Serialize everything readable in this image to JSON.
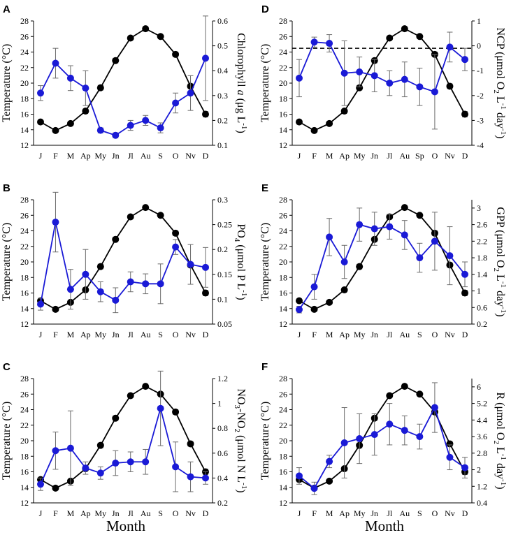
{
  "months_label": "Month",
  "colors": {
    "temperature": "#000000",
    "variable": "#1a1ad6",
    "error": "#6b6b6b",
    "ref": "#000000"
  },
  "chart_data": [
    {
      "panel": "A",
      "type": "line",
      "categories": [
        "J",
        "F",
        "M",
        "Ap",
        "My",
        "Jn",
        "Jl",
        "Au",
        "S",
        "O",
        "Nv",
        "D"
      ],
      "xlabel": "",
      "left_axis": {
        "label": "Temperature (°C)",
        "ylim": [
          12,
          28
        ],
        "ticks": [
          "12",
          "14",
          "16",
          "18",
          "20",
          "22",
          "24",
          "26",
          "28"
        ]
      },
      "right_axis": {
        "label_parts": [
          "Chlorophyll ",
          "a",
          " (",
          "μ",
          "g L",
          "-1",
          ")"
        ],
        "ylim": [
          0.1,
          0.6
        ],
        "ticks": [
          "0.1",
          "0.2",
          "0.3",
          "0.4",
          "0.5",
          "0.6"
        ]
      },
      "series": [
        {
          "name": "Temperature",
          "axis": "left",
          "values": [
            15.0,
            13.9,
            14.8,
            16.4,
            19.4,
            22.9,
            25.8,
            27.0,
            26.0,
            23.7,
            19.6,
            16.0
          ],
          "errors": [
            0.15,
            0.15,
            0.15,
            0.25,
            0.3,
            0.3,
            0.2,
            0.15,
            0.2,
            0.3,
            0.3,
            0.35
          ]
        },
        {
          "name": "Chlorophyll a",
          "axis": "right",
          "values": [
            0.31,
            0.43,
            0.37,
            0.33,
            0.16,
            0.14,
            0.18,
            0.2,
            0.17,
            0.27,
            0.31,
            0.45
          ],
          "errors": [
            0.03,
            0.06,
            0.05,
            0.07,
            0.01,
            0.01,
            0.02,
            0.02,
            0.02,
            0.04,
            0.07,
            0.17
          ]
        }
      ]
    },
    {
      "panel": "D",
      "type": "line",
      "categories": [
        "J",
        "F",
        "M",
        "Ap",
        "My",
        "Jn",
        "Jl",
        "Au",
        "Sp",
        "O",
        "Nv",
        "D"
      ],
      "xlabel": "",
      "left_axis": {
        "label": "Temperature (°C)",
        "ylim": [
          12,
          28
        ],
        "ticks": [
          "12",
          "14",
          "16",
          "18",
          "20",
          "22",
          "24",
          "26",
          "28"
        ]
      },
      "right_axis": {
        "label_parts": [
          "NCP (",
          "μ",
          "mol O",
          "2",
          " L",
          "-1",
          " day",
          "-1",
          ")"
        ],
        "ylim": [
          -4,
          1
        ],
        "ticks": [
          "-4",
          "-3",
          "-2",
          "-1",
          "0",
          "1"
        ]
      },
      "reference_line": {
        "axis": "right",
        "value": -0.1,
        "style": "dashed"
      },
      "series": [
        {
          "name": "Temperature",
          "axis": "left",
          "values": [
            15.0,
            13.9,
            14.8,
            16.4,
            19.4,
            22.9,
            25.8,
            27.0,
            26.0,
            23.7,
            19.6,
            16.0
          ],
          "errors": [
            0.15,
            0.15,
            0.15,
            0.25,
            0.3,
            0.3,
            0.2,
            0.15,
            0.2,
            0.3,
            0.3,
            0.35
          ]
        },
        {
          "name": "NCP",
          "axis": "right",
          "values": [
            -1.3,
            0.15,
            0.1,
            -1.1,
            -1.05,
            -1.2,
            -1.5,
            -1.35,
            -1.65,
            -1.85,
            -0.05,
            -0.55
          ],
          "errors": [
            0.75,
            0.2,
            0.35,
            1.3,
            0.6,
            0.65,
            0.5,
            0.7,
            0.75,
            1.5,
            0.6,
            0.45
          ]
        }
      ]
    },
    {
      "panel": "B",
      "type": "line",
      "categories": [
        "J",
        "F",
        "M",
        "Ap",
        "My",
        "Jn",
        "Jl",
        "Au",
        "S",
        "O",
        "Nv",
        "D"
      ],
      "xlabel": "",
      "left_axis": {
        "label": "Temperature (°C)",
        "ylim": [
          12,
          28
        ],
        "ticks": [
          "12",
          "14",
          "16",
          "18",
          "20",
          "22",
          "24",
          "26",
          "28"
        ]
      },
      "right_axis": {
        "label_parts": [
          "PO",
          "4",
          " (",
          "μ",
          "mol P L",
          "-1",
          ")"
        ],
        "ylim": [
          0.05,
          0.3
        ],
        "ticks": [
          "0.05",
          "0.1",
          "0.15",
          "0.2",
          "0.25",
          "0.3"
        ]
      },
      "series": [
        {
          "name": "Temperature",
          "axis": "left",
          "values": [
            15.0,
            13.9,
            14.8,
            16.4,
            19.4,
            22.9,
            25.8,
            27.0,
            26.0,
            23.7,
            19.6,
            16.0
          ],
          "errors": [
            0.15,
            0.15,
            0.15,
            0.25,
            0.3,
            0.3,
            0.2,
            0.15,
            0.2,
            0.3,
            0.3,
            0.35
          ]
        },
        {
          "name": "PO4",
          "axis": "right",
          "values": [
            0.09,
            0.255,
            0.12,
            0.15,
            0.115,
            0.098,
            0.135,
            0.131,
            0.131,
            0.205,
            0.17,
            0.164
          ],
          "errors": [
            0.012,
            0.06,
            0.04,
            0.05,
            0.02,
            0.025,
            0.02,
            0.02,
            0.04,
            0.015,
            0.04,
            0.04
          ]
        }
      ]
    },
    {
      "panel": "E",
      "type": "line",
      "categories": [
        "J",
        "F",
        "M",
        "Ap",
        "My",
        "Jn",
        "Jl",
        "Au",
        "S",
        "O",
        "Nv",
        "D"
      ],
      "xlabel": "",
      "left_axis": {
        "label": "Temperature (°C)",
        "ylim": [
          12,
          28
        ],
        "ticks": [
          "12",
          "14",
          "16",
          "18",
          "20",
          "22",
          "24",
          "26",
          "28"
        ]
      },
      "right_axis": {
        "label_parts": [
          "GPP (",
          "μ",
          "mol O",
          "2",
          " L",
          "-1",
          " day",
          "-1",
          ")"
        ],
        "ylim": [
          0.2,
          3.2
        ],
        "ticks": [
          "0.2",
          "0.6",
          "1",
          "1.4",
          "1.8",
          "2.2",
          "2.6",
          "3"
        ]
      },
      "series": [
        {
          "name": "Temperature",
          "axis": "left",
          "values": [
            15.0,
            13.9,
            14.8,
            16.4,
            19.4,
            22.9,
            25.8,
            27.0,
            26.0,
            23.7,
            19.6,
            16.0
          ],
          "errors": [
            0.15,
            0.15,
            0.15,
            0.25,
            0.3,
            0.3,
            0.2,
            0.15,
            0.2,
            0.3,
            0.3,
            0.35
          ]
        },
        {
          "name": "GPP",
          "axis": "right",
          "values": [
            0.55,
            1.1,
            2.3,
            1.7,
            2.6,
            2.5,
            2.55,
            2.35,
            1.8,
            2.2,
            1.85,
            1.4
          ],
          "errors": [
            0.08,
            0.3,
            0.45,
            0.4,
            0.4,
            0.4,
            0.3,
            0.35,
            0.35,
            0.7,
            0.7,
            0.3
          ]
        }
      ]
    },
    {
      "panel": "C",
      "type": "line",
      "categories": [
        "J",
        "F",
        "M",
        "Ap",
        "My",
        "Jn",
        "Jl",
        "Au",
        "S",
        "O",
        "Nv",
        "D"
      ],
      "xlabel": "",
      "left_axis": {
        "label": "Temperature (°C)",
        "ylim": [
          12,
          28
        ],
        "ticks": [
          "12",
          "14",
          "16",
          "18",
          "20",
          "22",
          "24",
          "26",
          "28"
        ]
      },
      "right_axis": {
        "label_parts": [
          "NO",
          "3",
          "-NO",
          "2",
          " (",
          "μ",
          "mol N L",
          "-1",
          ")"
        ],
        "ylim": [
          0.2,
          1.2
        ],
        "ticks": [
          "0.2",
          "0.4",
          "0.6",
          "0.8",
          "1",
          "1.2"
        ]
      },
      "series": [
        {
          "name": "Temperature",
          "axis": "left",
          "values": [
            15.0,
            13.9,
            14.8,
            16.4,
            19.4,
            22.9,
            25.8,
            27.0,
            26.0,
            23.7,
            19.6,
            16.0
          ],
          "errors": [
            0.15,
            0.15,
            0.15,
            0.25,
            0.3,
            0.3,
            0.2,
            0.15,
            0.2,
            0.3,
            0.3,
            0.35
          ]
        },
        {
          "name": "NO3-NO2",
          "axis": "right",
          "values": [
            0.35,
            0.62,
            0.64,
            0.48,
            0.44,
            0.52,
            0.53,
            0.53,
            0.96,
            0.49,
            0.41,
            0.4
          ],
          "errors": [
            0.05,
            0.15,
            0.3,
            0.05,
            0.05,
            0.1,
            0.08,
            0.1,
            0.3,
            0.2,
            0.12,
            0.05
          ]
        }
      ]
    },
    {
      "panel": "F",
      "type": "line",
      "categories": [
        "J",
        "F",
        "M",
        "Ap",
        "My",
        "Jn",
        "Jl",
        "Au",
        "S",
        "O",
        "Nv",
        "D"
      ],
      "xlabel": "",
      "left_axis": {
        "label": "Temperature (°C)",
        "ylim": [
          12,
          28
        ],
        "ticks": [
          "12",
          "14",
          "16",
          "18",
          "20",
          "22",
          "24",
          "26",
          "28"
        ]
      },
      "right_axis": {
        "label_parts": [
          "R (",
          "μ",
          "mol O",
          "2",
          " L",
          "-1",
          " day",
          "-1",
          ")"
        ],
        "ylim": [
          0.4,
          6.4
        ],
        "ticks": [
          "0.4",
          "1.2",
          "2",
          "2.8",
          "3.6",
          "4.4",
          "5.2",
          "6"
        ]
      },
      "series": [
        {
          "name": "Temperature",
          "axis": "left",
          "values": [
            15.0,
            13.9,
            14.8,
            16.4,
            19.4,
            22.9,
            25.8,
            27.0,
            26.0,
            23.7,
            19.6,
            16.0
          ],
          "errors": [
            0.15,
            0.15,
            0.15,
            0.25,
            0.3,
            0.3,
            0.2,
            0.15,
            0.2,
            0.3,
            0.3,
            0.35
          ]
        },
        {
          "name": "R",
          "axis": "right",
          "values": [
            1.7,
            1.1,
            2.4,
            3.3,
            3.5,
            3.7,
            4.2,
            3.9,
            3.6,
            5.0,
            2.6,
            2.1
          ],
          "errors": [
            0.4,
            0.3,
            0.3,
            1.7,
            1.2,
            1.0,
            1.0,
            0.7,
            0.6,
            1.2,
            0.6,
            0.5
          ]
        }
      ]
    }
  ]
}
